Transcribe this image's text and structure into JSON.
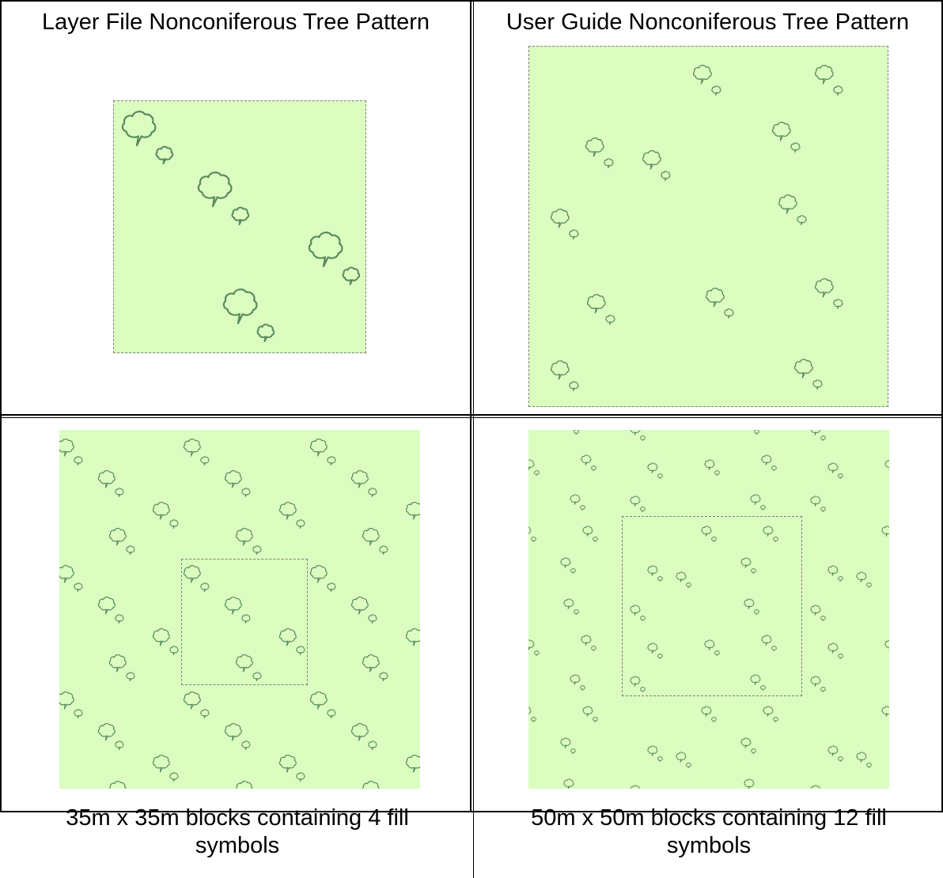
{
  "table": {
    "headers": [
      "Layer File Nonconiferous Tree Pattern",
      "User Guide Nonconiferous Tree Pattern"
    ],
    "captions": [
      "35m x 35m blocks containing 4 fill symbols",
      "50m x 50m blocks containing 12 fill symbols"
    ]
  },
  "colors": {
    "fill": "#dbfdbf",
    "tree_stroke": "#5a8a5e",
    "dashed_border": "#808080",
    "grid_line": "#000000"
  },
  "icons": {
    "tree_symbol": "nonconiferous-tree-icon"
  }
}
